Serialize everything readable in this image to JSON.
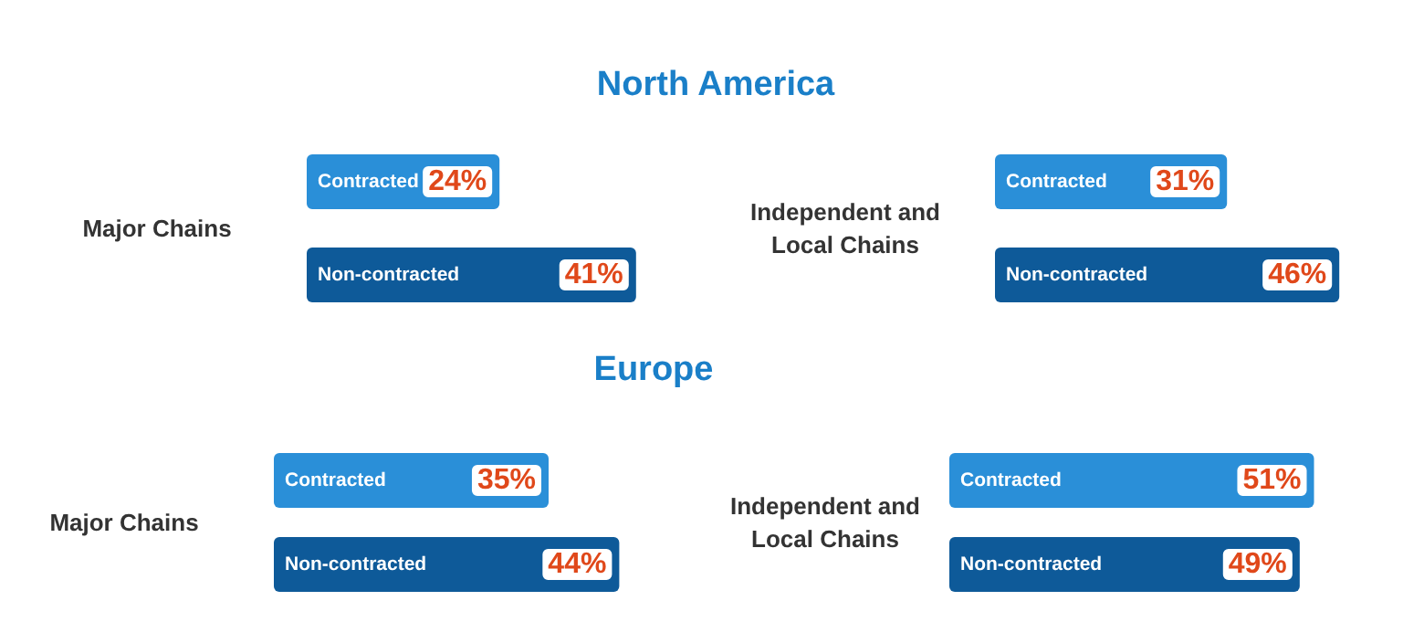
{
  "chart_data": [
    {
      "type": "bar",
      "orientation": "horizontal",
      "title": "North America",
      "ylabel": "Major Chains",
      "categories": [
        "Contracted",
        "Non-contracted"
      ],
      "values": [
        24,
        41
      ],
      "colors": [
        "#2a8fd8",
        "#0e5a99"
      ],
      "value_labels": [
        "24%",
        "41%"
      ]
    },
    {
      "type": "bar",
      "orientation": "horizontal",
      "ylabel": "Independent and Local Chains",
      "categories": [
        "Contracted",
        "Non-contracted"
      ],
      "values": [
        31,
        46
      ],
      "colors": [
        "#2a8fd8",
        "#0e5a99"
      ],
      "value_labels": [
        "31%",
        "46%"
      ]
    },
    {
      "type": "bar",
      "orientation": "horizontal",
      "title": "Europe",
      "ylabel": "Major Chains",
      "categories": [
        "Contracted",
        "Non-contracted"
      ],
      "values": [
        35,
        44
      ],
      "colors": [
        "#2a8fd8",
        "#0e5a99"
      ],
      "value_labels": [
        "35%",
        "44%"
      ]
    },
    {
      "type": "bar",
      "orientation": "horizontal",
      "ylabel": "Independent and Local Chains",
      "categories": [
        "Contracted",
        "Non-contracted"
      ],
      "values": [
        51,
        49
      ],
      "colors": [
        "#2a8fd8",
        "#0e5a99"
      ],
      "value_labels": [
        "51%",
        "49%"
      ]
    }
  ]
}
